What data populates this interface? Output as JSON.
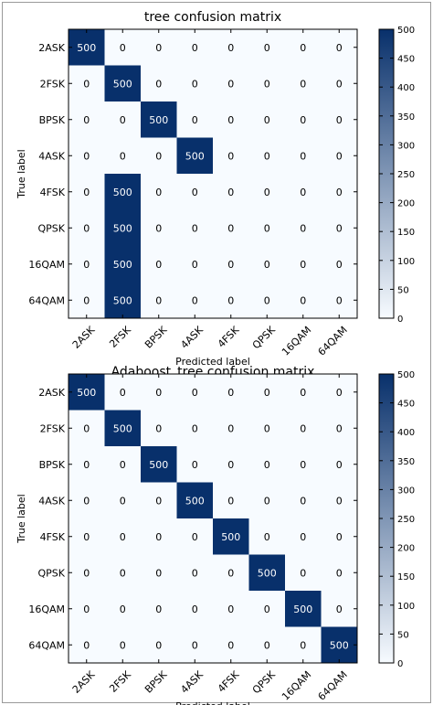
{
  "chart_data": [
    {
      "type": "heatmap",
      "title": "tree confusion matrix",
      "xlabel": "Predicted label",
      "ylabel": "True label",
      "x_categories": [
        "2ASK",
        "2FSK",
        "BPSK",
        "4ASK",
        "4FSK",
        "QPSK",
        "16QAM",
        "64QAM"
      ],
      "y_categories": [
        "2ASK",
        "2FSK",
        "BPSK",
        "4ASK",
        "4FSK",
        "QPSK",
        "16QAM",
        "64QAM"
      ],
      "values": [
        [
          500,
          0,
          0,
          0,
          0,
          0,
          0,
          0
        ],
        [
          0,
          500,
          0,
          0,
          0,
          0,
          0,
          0
        ],
        [
          0,
          0,
          500,
          0,
          0,
          0,
          0,
          0
        ],
        [
          0,
          0,
          0,
          500,
          0,
          0,
          0,
          0
        ],
        [
          0,
          500,
          0,
          0,
          0,
          0,
          0,
          0
        ],
        [
          0,
          500,
          0,
          0,
          0,
          0,
          0,
          0
        ],
        [
          0,
          500,
          0,
          0,
          0,
          0,
          0,
          0
        ],
        [
          0,
          500,
          0,
          0,
          0,
          0,
          0,
          0
        ]
      ],
      "colorbar": {
        "min": 0,
        "max": 500,
        "ticks": [
          0,
          50,
          100,
          150,
          200,
          250,
          300,
          350,
          400,
          450,
          500
        ]
      },
      "colormap": {
        "low": "#f7fbff",
        "high": "#08306b"
      }
    },
    {
      "type": "heatmap",
      "title": "Adaboost_tree confusion matrix",
      "xlabel": "Predicted label",
      "ylabel": "True label",
      "x_categories": [
        "2ASK",
        "2FSK",
        "BPSK",
        "4ASK",
        "4FSK",
        "QPSK",
        "16QAM",
        "64QAM"
      ],
      "y_categories": [
        "2ASK",
        "2FSK",
        "BPSK",
        "4ASK",
        "4FSK",
        "QPSK",
        "16QAM",
        "64QAM"
      ],
      "values": [
        [
          500,
          0,
          0,
          0,
          0,
          0,
          0,
          0
        ],
        [
          0,
          500,
          0,
          0,
          0,
          0,
          0,
          0
        ],
        [
          0,
          0,
          500,
          0,
          0,
          0,
          0,
          0
        ],
        [
          0,
          0,
          0,
          500,
          0,
          0,
          0,
          0
        ],
        [
          0,
          0,
          0,
          0,
          500,
          0,
          0,
          0
        ],
        [
          0,
          0,
          0,
          0,
          0,
          500,
          0,
          0
        ],
        [
          0,
          0,
          0,
          0,
          0,
          0,
          500,
          0
        ],
        [
          0,
          0,
          0,
          0,
          0,
          0,
          0,
          500
        ]
      ],
      "colorbar": {
        "min": 0,
        "max": 500,
        "ticks": [
          0,
          50,
          100,
          150,
          200,
          250,
          300,
          350,
          400,
          450,
          500
        ]
      },
      "colormap": {
        "low": "#f7fbff",
        "high": "#08306b"
      }
    }
  ]
}
